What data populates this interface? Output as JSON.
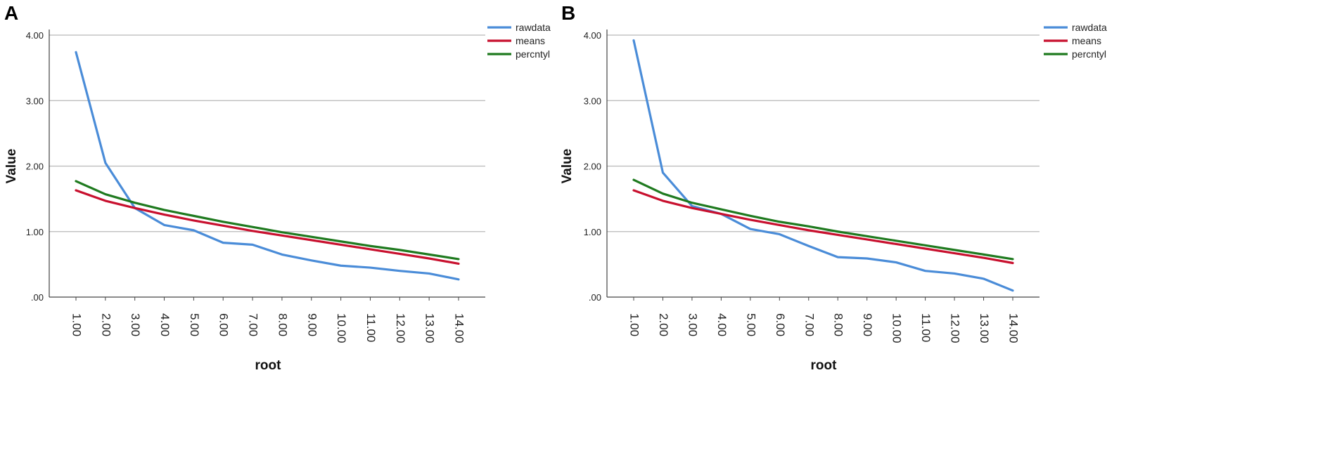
{
  "chart_data": [
    {
      "type": "line",
      "panel_label": "A",
      "xlabel": "root",
      "ylabel": "Value",
      "x": [
        1,
        2,
        3,
        4,
        5,
        6,
        7,
        8,
        9,
        10,
        11,
        12,
        13,
        14
      ],
      "x_tick_labels": [
        "1.00",
        "2.00",
        "3.00",
        "4.00",
        "5.00",
        "6.00",
        "7.00",
        "8.00",
        "9.00",
        "10.00",
        "11.00",
        "12.00",
        "13.00",
        "14.00"
      ],
      "ylim": [
        0,
        4
      ],
      "y_ticks": [
        0,
        1,
        2,
        3,
        4
      ],
      "y_tick_labels": [
        ".00",
        "1.00",
        "2.00",
        "3.00",
        "4.00"
      ],
      "grid": true,
      "legend_position": "top-right",
      "series": [
        {
          "name": "rawdata",
          "color": "#4a8cd8",
          "values": [
            3.74,
            2.05,
            1.36,
            1.1,
            1.02,
            0.83,
            0.8,
            0.65,
            0.56,
            0.48,
            0.45,
            0.4,
            0.36,
            0.27
          ]
        },
        {
          "name": "means",
          "color": "#c8102e",
          "values": [
            1.63,
            1.47,
            1.36,
            1.26,
            1.17,
            1.09,
            1.01,
            0.94,
            0.87,
            0.8,
            0.73,
            0.66,
            0.59,
            0.51
          ]
        },
        {
          "name": "percntyl",
          "color": "#1f7a1f",
          "values": [
            1.77,
            1.57,
            1.44,
            1.33,
            1.24,
            1.15,
            1.07,
            0.99,
            0.92,
            0.85,
            0.78,
            0.72,
            0.65,
            0.58
          ]
        }
      ]
    },
    {
      "type": "line",
      "panel_label": "B",
      "xlabel": "root",
      "ylabel": "Value",
      "x": [
        1,
        2,
        3,
        4,
        5,
        6,
        7,
        8,
        9,
        10,
        11,
        12,
        13,
        14
      ],
      "x_tick_labels": [
        "1.00",
        "2.00",
        "3.00",
        "4.00",
        "5.00",
        "6.00",
        "7.00",
        "8.00",
        "9.00",
        "10.00",
        "11.00",
        "12.00",
        "13.00",
        "14.00"
      ],
      "ylim": [
        0,
        4
      ],
      "y_ticks": [
        0,
        1,
        2,
        3,
        4
      ],
      "y_tick_labels": [
        ".00",
        "1.00",
        "2.00",
        "3.00",
        "4.00"
      ],
      "grid": true,
      "legend_position": "top-right",
      "series": [
        {
          "name": "rawdata",
          "color": "#4a8cd8",
          "values": [
            3.92,
            1.9,
            1.39,
            1.27,
            1.04,
            0.96,
            0.78,
            0.61,
            0.59,
            0.53,
            0.4,
            0.36,
            0.28,
            0.1
          ]
        },
        {
          "name": "means",
          "color": "#c8102e",
          "values": [
            1.63,
            1.47,
            1.36,
            1.27,
            1.18,
            1.1,
            1.02,
            0.95,
            0.88,
            0.81,
            0.74,
            0.67,
            0.6,
            0.52
          ]
        },
        {
          "name": "percntyl",
          "color": "#1f7a1f",
          "values": [
            1.79,
            1.58,
            1.44,
            1.34,
            1.24,
            1.15,
            1.08,
            1.0,
            0.93,
            0.86,
            0.79,
            0.72,
            0.65,
            0.58
          ]
        }
      ]
    }
  ]
}
